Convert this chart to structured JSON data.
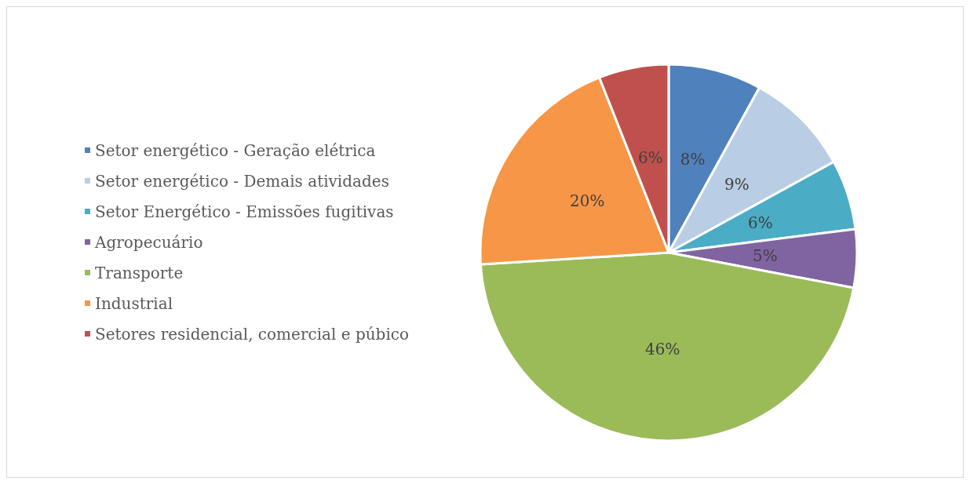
{
  "chart_data": {
    "type": "pie",
    "categories": [
      "Setor energético - Geração elétrica",
      "Setor energético - Demais atividades",
      "Setor Energético - Emissões fugitivas",
      "Agropecuário",
      "Transporte",
      "Industrial",
      "Setores residencial, comercial e púbico"
    ],
    "values": [
      8,
      9,
      6,
      5,
      46,
      20,
      6
    ],
    "value_labels": [
      "8%",
      "9%",
      "6%",
      "5%",
      "46%",
      "20%",
      "6%"
    ],
    "colors": [
      "#4f81bd",
      "#b9cde5",
      "#4bacc6",
      "#8064a2",
      "#9bbb59",
      "#f79646",
      "#c0504d"
    ],
    "legend": "left"
  }
}
